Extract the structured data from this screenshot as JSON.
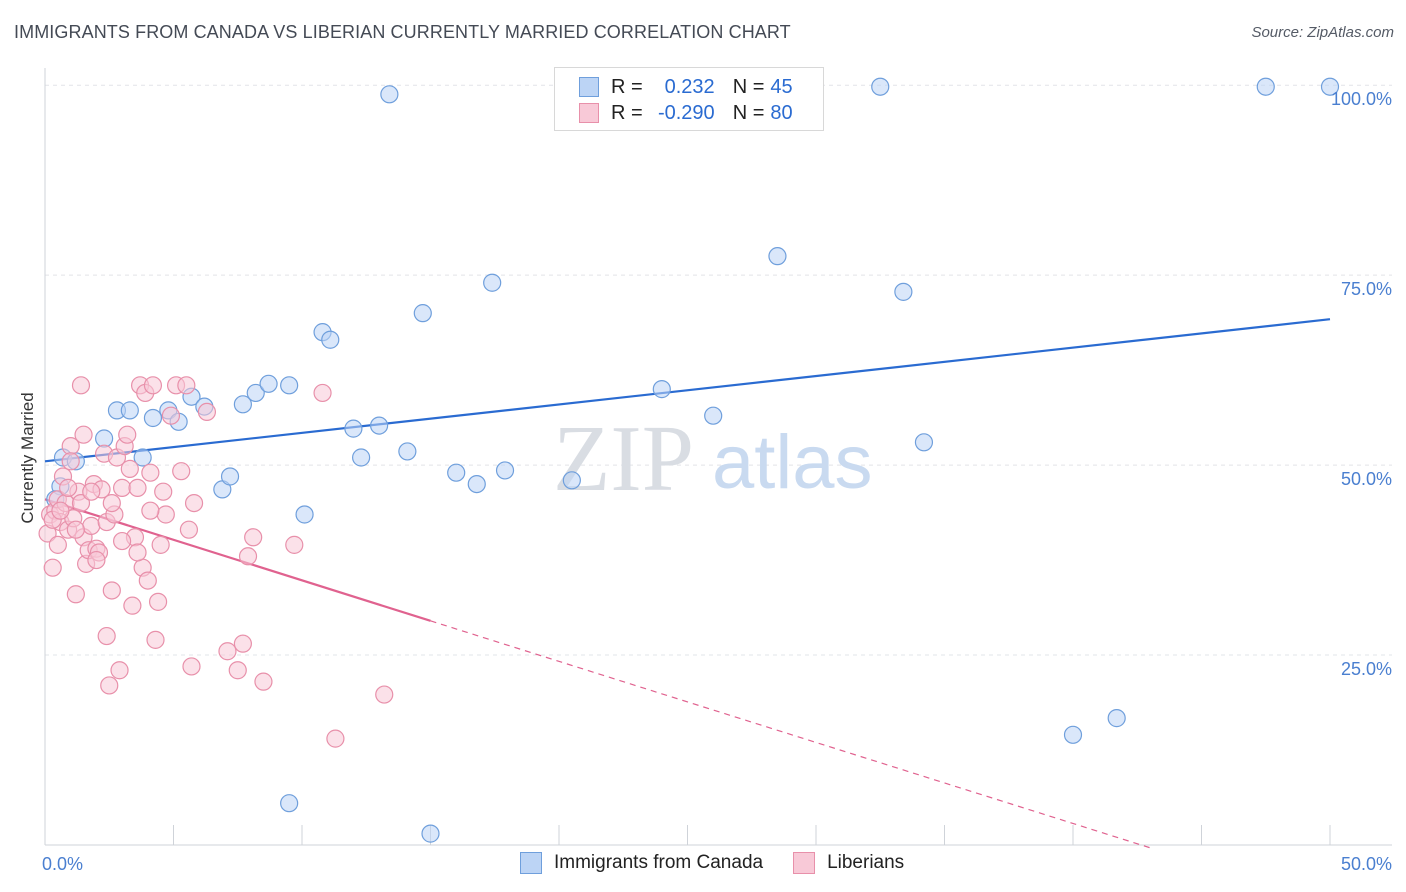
{
  "header": {
    "title": "IMMIGRANTS FROM CANADA VS LIBERIAN CURRENTLY MARRIED CORRELATION CHART",
    "source": "Source: ZipAtlas.com"
  },
  "watermark": {
    "zip": "ZIP",
    "atlas": "atlas"
  },
  "legend": {
    "rows": [
      {
        "r_label": "R =",
        "r_value": "0.232",
        "n_label": "N =",
        "n_value": "45"
      },
      {
        "r_label": "R =",
        "r_value": "-0.290",
        "n_label": "N =",
        "n_value": "80"
      }
    ]
  },
  "bottom_legend": {
    "series1": "Immigrants from Canada",
    "series2": "Liberians"
  },
  "colors": {
    "blue_fill": "#bcd4f5",
    "blue_stroke": "#6f9fdc",
    "blue_line": "#2a6bd1",
    "pink_fill": "#f8c9d7",
    "pink_stroke": "#e890aa",
    "pink_line": "#e0628f",
    "axis_label": "#4a7fd0"
  },
  "chart_data": {
    "type": "scatter",
    "title": "IMMIGRANTS FROM CANADA VS LIBERIAN CURRENTLY MARRIED CORRELATION CHART",
    "xlabel": "",
    "ylabel": "Currently Married",
    "xlim": [
      0,
      50
    ],
    "ylim": [
      0,
      102
    ],
    "x_tick_labels": [
      "0.0%",
      "50.0%"
    ],
    "y_tick_values": [
      25,
      50,
      75,
      100
    ],
    "y_tick_labels": [
      "25.0%",
      "50.0%",
      "75.0%",
      "100.0%"
    ],
    "grid": true,
    "series": [
      {
        "name": "Immigrants from Canada",
        "r": 0.232,
        "n": 45,
        "trend": {
          "x": [
            0,
            50
          ],
          "y": [
            50.5,
            69.2
          ],
          "dashed_x": null
        },
        "points": [
          [
            0.6,
            47.2
          ],
          [
            0.7,
            51.0
          ],
          [
            1.2,
            50.5
          ],
          [
            2.3,
            53.5
          ],
          [
            2.8,
            57.2
          ],
          [
            3.3,
            57.2
          ],
          [
            3.8,
            51.0
          ],
          [
            4.2,
            56.2
          ],
          [
            4.8,
            57.2
          ],
          [
            5.2,
            55.7
          ],
          [
            5.7,
            59.0
          ],
          [
            6.2,
            57.7
          ],
          [
            6.9,
            46.8
          ],
          [
            7.2,
            48.5
          ],
          [
            7.7,
            58.0
          ],
          [
            8.2,
            59.5
          ],
          [
            8.7,
            60.7
          ],
          [
            9.5,
            60.5
          ],
          [
            10.1,
            43.5
          ],
          [
            10.8,
            67.5
          ],
          [
            11.1,
            66.5
          ],
          [
            12.0,
            54.8
          ],
          [
            12.3,
            51.0
          ],
          [
            13.0,
            55.2
          ],
          [
            13.4,
            98.8
          ],
          [
            14.1,
            51.8
          ],
          [
            14.7,
            70.0
          ],
          [
            16.0,
            49.0
          ],
          [
            16.8,
            47.5
          ],
          [
            17.4,
            74.0
          ],
          [
            17.9,
            49.3
          ],
          [
            20.5,
            48.0
          ],
          [
            24.0,
            60.0
          ],
          [
            26.0,
            56.5
          ],
          [
            28.5,
            77.5
          ],
          [
            32.5,
            99.8
          ],
          [
            33.4,
            72.8
          ],
          [
            34.2,
            53.0
          ],
          [
            9.5,
            5.5
          ],
          [
            15.0,
            1.5
          ],
          [
            40.0,
            14.5
          ],
          [
            41.7,
            16.7
          ],
          [
            47.5,
            99.8
          ],
          [
            50.0,
            99.8
          ],
          [
            0.4,
            45.5
          ]
        ]
      },
      {
        "name": "Liberians",
        "r": -0.29,
        "n": 80,
        "trend": {
          "x": [
            0,
            15
          ],
          "y": [
            45.5,
            29.5
          ],
          "dashed_x": [
            15,
            43
          ]
        },
        "points": [
          [
            0.1,
            41.0
          ],
          [
            0.2,
            43.5
          ],
          [
            0.3,
            36.5
          ],
          [
            0.4,
            44.0
          ],
          [
            0.5,
            45.5
          ],
          [
            0.6,
            42.5
          ],
          [
            0.7,
            48.5
          ],
          [
            0.8,
            45.0
          ],
          [
            0.9,
            41.5
          ],
          [
            1.0,
            52.5
          ],
          [
            1.1,
            43.0
          ],
          [
            1.2,
            33.0
          ],
          [
            1.3,
            46.5
          ],
          [
            1.4,
            45.0
          ],
          [
            1.5,
            40.5
          ],
          [
            1.6,
            37.0
          ],
          [
            1.7,
            38.8
          ],
          [
            1.8,
            42.0
          ],
          [
            1.9,
            47.5
          ],
          [
            2.0,
            39.0
          ],
          [
            2.1,
            38.5
          ],
          [
            2.2,
            46.8
          ],
          [
            2.3,
            51.5
          ],
          [
            2.4,
            42.5
          ],
          [
            2.5,
            21.0
          ],
          [
            2.6,
            33.5
          ],
          [
            2.7,
            43.5
          ],
          [
            2.8,
            51.0
          ],
          [
            2.9,
            23.0
          ],
          [
            3.0,
            47.0
          ],
          [
            3.1,
            52.5
          ],
          [
            3.2,
            54.0
          ],
          [
            3.3,
            49.5
          ],
          [
            3.4,
            31.5
          ],
          [
            3.5,
            40.5
          ],
          [
            3.6,
            47.0
          ],
          [
            3.7,
            60.5
          ],
          [
            3.8,
            36.5
          ],
          [
            3.9,
            59.5
          ],
          [
            4.0,
            34.8
          ],
          [
            4.1,
            49.0
          ],
          [
            4.2,
            60.5
          ],
          [
            4.3,
            27.0
          ],
          [
            4.4,
            32.0
          ],
          [
            4.5,
            39.5
          ],
          [
            4.6,
            46.5
          ],
          [
            4.7,
            43.5
          ],
          [
            4.9,
            56.5
          ],
          [
            5.1,
            60.5
          ],
          [
            5.3,
            49.2
          ],
          [
            5.5,
            60.5
          ],
          [
            5.6,
            41.5
          ],
          [
            5.7,
            23.5
          ],
          [
            5.8,
            45.0
          ],
          [
            6.3,
            57.0
          ],
          [
            7.1,
            25.5
          ],
          [
            7.5,
            23.0
          ],
          [
            7.7,
            26.5
          ],
          [
            7.9,
            38.0
          ],
          [
            8.1,
            40.5
          ],
          [
            8.5,
            21.5
          ],
          [
            9.7,
            39.5
          ],
          [
            10.8,
            59.5
          ],
          [
            11.3,
            14.0
          ],
          [
            13.2,
            19.8
          ],
          [
            1.4,
            60.5
          ],
          [
            2.4,
            27.5
          ],
          [
            1.0,
            50.5
          ],
          [
            0.3,
            42.8
          ],
          [
            0.6,
            44.0
          ],
          [
            1.2,
            41.5
          ],
          [
            1.8,
            46.5
          ],
          [
            2.6,
            45.0
          ],
          [
            3.0,
            40.0
          ],
          [
            1.5,
            54.0
          ],
          [
            0.9,
            47.0
          ],
          [
            2.0,
            37.5
          ],
          [
            4.1,
            44.0
          ],
          [
            3.6,
            38.5
          ],
          [
            0.5,
            39.5
          ]
        ]
      }
    ]
  }
}
